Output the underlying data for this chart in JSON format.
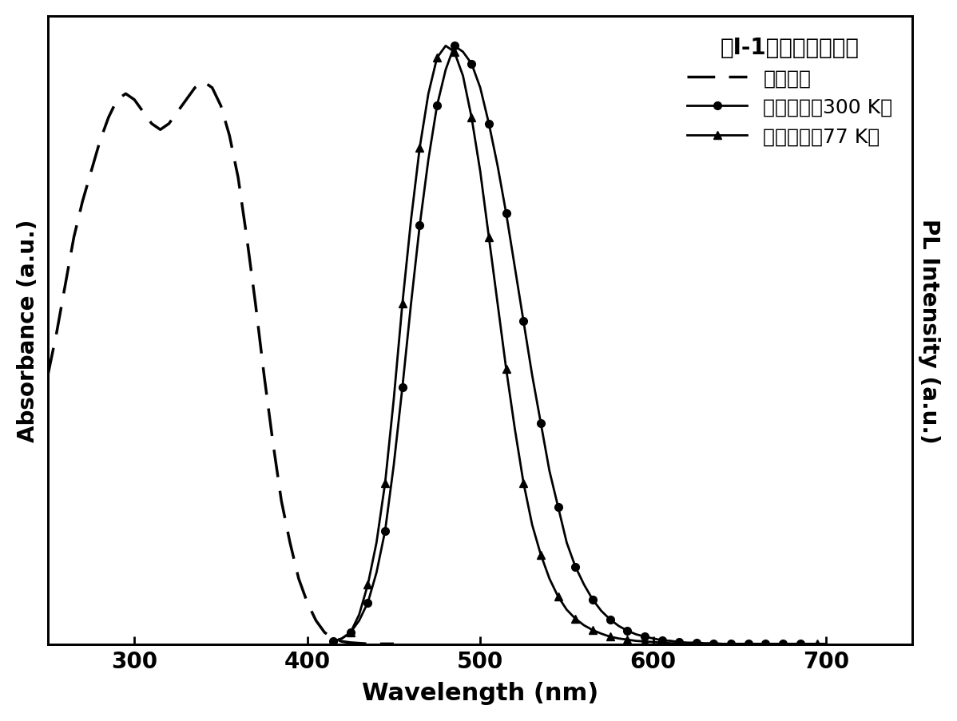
{
  "title": "",
  "xlabel": "Wavelength (nm)",
  "ylabel_left": "Absorbance (a.u.)",
  "ylabel_right": "PL Intensity (a.u.)",
  "legend_title": "式I-1所示结构化合物",
  "legend_labels": [
    "吸收光谱",
    "发射光谱（300 K）",
    "发射光谱（77 K）"
  ],
  "xlim": [
    250,
    750
  ],
  "ylim": [
    0,
    1.05
  ],
  "xticks": [
    300,
    400,
    500,
    600,
    700
  ],
  "background_color": "#ffffff",
  "line_color": "#000000",
  "abs_x": [
    250,
    255,
    260,
    265,
    270,
    275,
    280,
    285,
    290,
    295,
    300,
    305,
    310,
    315,
    320,
    325,
    330,
    335,
    340,
    345,
    350,
    355,
    360,
    365,
    370,
    375,
    380,
    385,
    390,
    395,
    400,
    405,
    410,
    415,
    420,
    425,
    430,
    435,
    440,
    445,
    450
  ],
  "abs_y": [
    0.45,
    0.52,
    0.6,
    0.68,
    0.74,
    0.79,
    0.84,
    0.88,
    0.91,
    0.92,
    0.91,
    0.89,
    0.87,
    0.86,
    0.87,
    0.89,
    0.91,
    0.93,
    0.94,
    0.93,
    0.9,
    0.85,
    0.78,
    0.68,
    0.57,
    0.45,
    0.34,
    0.24,
    0.17,
    0.11,
    0.07,
    0.04,
    0.02,
    0.01,
    0.005,
    0.003,
    0.002,
    0.001,
    0.001,
    0.001,
    0.001
  ],
  "pl300_x": [
    415,
    420,
    425,
    430,
    435,
    440,
    445,
    450,
    455,
    460,
    465,
    470,
    475,
    480,
    485,
    490,
    495,
    500,
    505,
    510,
    515,
    520,
    525,
    530,
    535,
    540,
    545,
    550,
    555,
    560,
    565,
    570,
    575,
    580,
    585,
    590,
    595,
    600,
    605,
    610,
    615,
    620,
    625,
    630,
    635,
    640,
    645,
    650,
    655,
    660,
    665,
    670,
    675,
    680,
    685,
    690
  ],
  "pl300_y": [
    0.005,
    0.01,
    0.02,
    0.04,
    0.07,
    0.12,
    0.19,
    0.3,
    0.43,
    0.57,
    0.7,
    0.81,
    0.9,
    0.96,
    1.0,
    0.99,
    0.97,
    0.93,
    0.87,
    0.8,
    0.72,
    0.63,
    0.54,
    0.45,
    0.37,
    0.29,
    0.23,
    0.17,
    0.13,
    0.1,
    0.075,
    0.056,
    0.042,
    0.031,
    0.023,
    0.017,
    0.013,
    0.01,
    0.007,
    0.006,
    0.004,
    0.003,
    0.003,
    0.002,
    0.002,
    0.001,
    0.001,
    0.001,
    0.001,
    0.001,
    0.001,
    0.001,
    0.001,
    0.001,
    0.001,
    0.001
  ],
  "pl77_x": [
    415,
    420,
    425,
    430,
    435,
    440,
    445,
    450,
    455,
    460,
    465,
    470,
    475,
    480,
    485,
    490,
    495,
    500,
    505,
    510,
    515,
    520,
    525,
    530,
    535,
    540,
    545,
    550,
    555,
    560,
    565,
    570,
    575,
    580,
    585,
    590,
    595,
    600,
    605,
    610,
    615,
    620,
    625,
    630,
    635,
    640,
    645,
    650,
    655,
    660,
    665,
    670,
    675,
    680,
    685,
    690,
    695,
    700
  ],
  "pl77_y": [
    0.005,
    0.01,
    0.02,
    0.05,
    0.1,
    0.17,
    0.27,
    0.41,
    0.57,
    0.71,
    0.83,
    0.92,
    0.98,
    1.0,
    0.99,
    0.95,
    0.88,
    0.79,
    0.68,
    0.57,
    0.46,
    0.36,
    0.27,
    0.2,
    0.15,
    0.11,
    0.08,
    0.058,
    0.043,
    0.032,
    0.024,
    0.018,
    0.013,
    0.01,
    0.008,
    0.006,
    0.005,
    0.004,
    0.003,
    0.002,
    0.002,
    0.002,
    0.001,
    0.001,
    0.001,
    0.001,
    0.001,
    0.001,
    0.001,
    0.001,
    0.001,
    0.001,
    0.001,
    0.001,
    0.001,
    0.001,
    0.001,
    0.001
  ]
}
